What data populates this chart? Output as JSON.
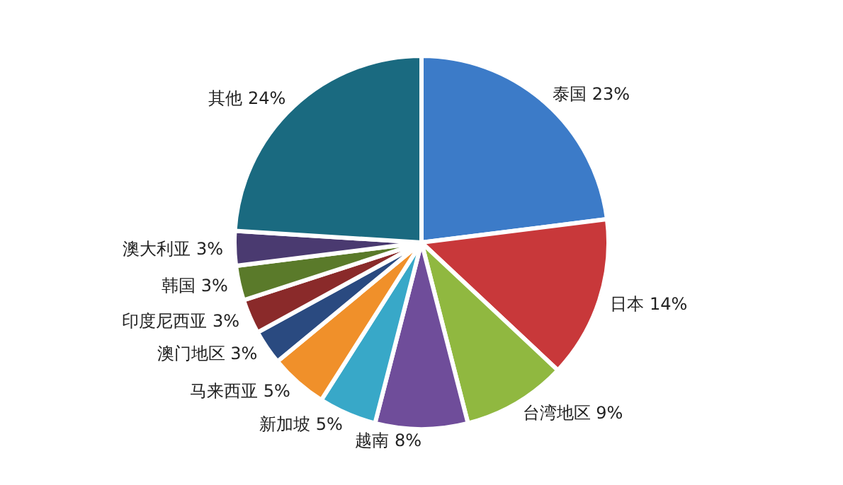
{
  "chart_data": {
    "type": "pie",
    "categories": [
      "泰国",
      "日本",
      "台湾地区",
      "越南",
      "新加坡",
      "马来西亚",
      "澳门地区",
      "印度尼西亚",
      "韩国",
      "澳大利亚",
      "其他"
    ],
    "values": [
      23,
      14,
      9,
      8,
      5,
      5,
      3,
      3,
      3,
      3,
      24
    ],
    "value_labels": [
      "23%",
      "14%",
      "9%",
      "8%",
      "5%",
      "5%",
      "3%",
      "3%",
      "3%",
      "3%",
      "24%"
    ],
    "colors": [
      "#3c7bc8",
      "#c8383a",
      "#90b840",
      "#6f4d9a",
      "#38a8c8",
      "#f0902a",
      "#2a4a80",
      "#8a2a2a",
      "#5a7a2a",
      "#4a3a70",
      "#1a6a80"
    ]
  }
}
